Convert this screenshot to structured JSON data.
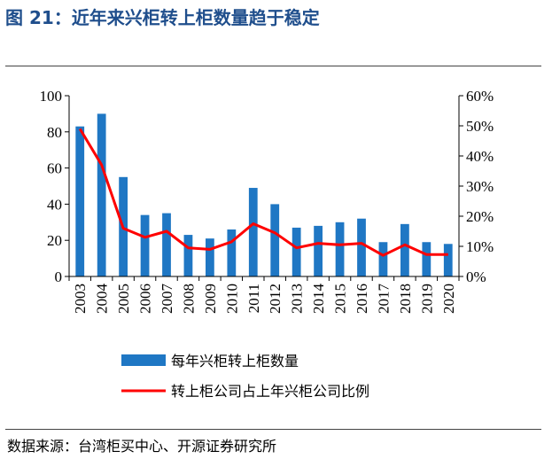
{
  "header": {
    "title": "图 21：近年来兴柜转上柜数量趋于稳定"
  },
  "footer": {
    "source": "数据来源：台湾柜买中心、开源证券研究所"
  },
  "chart_data": {
    "type": "bar",
    "title": "近年来兴柜转上柜数量趋于稳定",
    "categories": [
      "2003",
      "2004",
      "2005",
      "2006",
      "2007",
      "2008",
      "2009",
      "2010",
      "2011",
      "2012",
      "2013",
      "2014",
      "2015",
      "2016",
      "2017",
      "2018",
      "2019",
      "2020"
    ],
    "series": [
      {
        "name": "每年兴柜转上柜数量",
        "type": "bar",
        "axis": "left",
        "color": "#1f77c4",
        "values": [
          83,
          90,
          55,
          34,
          35,
          23,
          21,
          26,
          49,
          40,
          27,
          28,
          30,
          32,
          19,
          29,
          19,
          18
        ]
      },
      {
        "name": "转上柜公司占上年兴柜公司比例",
        "type": "line",
        "axis": "right",
        "color": "#ff0000",
        "values": [
          0.49,
          0.37,
          0.16,
          0.13,
          0.15,
          0.095,
          0.09,
          0.115,
          0.175,
          0.145,
          0.095,
          0.11,
          0.105,
          0.11,
          0.07,
          0.105,
          0.073,
          0.073
        ]
      }
    ],
    "y_left": {
      "ylim": [
        0,
        100
      ],
      "ticks": [
        "0",
        "20",
        "40",
        "60",
        "80",
        "100"
      ]
    },
    "y_right": {
      "ylim": [
        0,
        0.6
      ],
      "ticks": [
        "0%",
        "10%",
        "20%",
        "30%",
        "40%",
        "50%",
        "60%"
      ]
    },
    "legend_position": "bottom",
    "grid": false
  }
}
